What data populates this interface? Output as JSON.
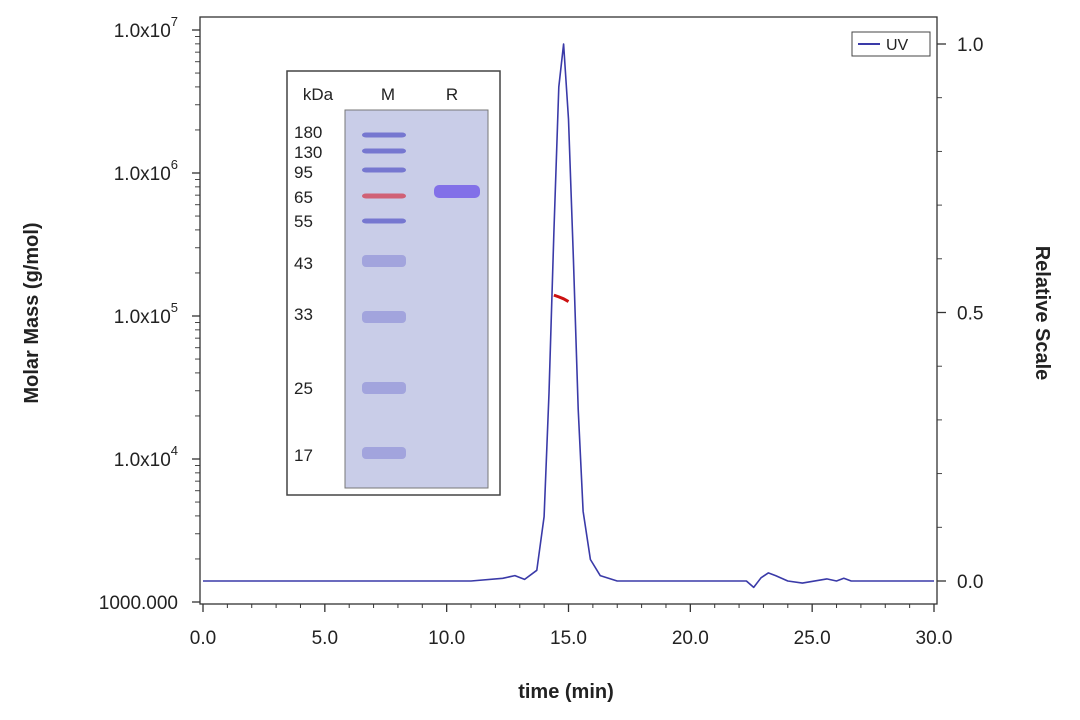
{
  "chart_data": {
    "type": "line",
    "xlabel": "time (min)",
    "ylabel_left": "Molar Mass (g/mol)",
    "ylabel_right": "Relative Scale",
    "xlim": [
      0,
      30
    ],
    "xticks": [
      0,
      5,
      10,
      15,
      20,
      25,
      30
    ],
    "xtick_labels": [
      "0.0",
      "5.0",
      "10.0",
      "15.0",
      "20.0",
      "25.0",
      "30.0"
    ],
    "y_left_scale": "log",
    "y_left_lim": [
      1000,
      10000000
    ],
    "y_left_ticks": [
      1000,
      10000,
      100000,
      1000000,
      10000000
    ],
    "y_left_tick_labels": [
      {
        "base": "1000.000",
        "exp": ""
      },
      {
        "base": "1.0x10",
        "exp": "4"
      },
      {
        "base": "1.0x10",
        "exp": "5"
      },
      {
        "base": "1.0x10",
        "exp": "6"
      },
      {
        "base": "1.0x10",
        "exp": "7"
      }
    ],
    "y_right_lim": [
      -0.04,
      1.04
    ],
    "y_right_ticks": [
      0.0,
      0.5,
      1.0
    ],
    "y_right_tick_labels": [
      "0.0",
      "0.5",
      "1.0"
    ],
    "legend": {
      "placement": "top-right",
      "entries": [
        "UV"
      ]
    },
    "series": [
      {
        "name": "UV",
        "axis": "right",
        "color": "#3a3aa8",
        "x": [
          0,
          11,
          12.3,
          12.8,
          13.2,
          13.7,
          14.0,
          14.2,
          14.4,
          14.6,
          14.8,
          15.0,
          15.2,
          15.4,
          15.6,
          15.9,
          16.3,
          17.0,
          22.3,
          22.6,
          22.9,
          23.2,
          23.5,
          24.0,
          24.6,
          25.6,
          26.0,
          26.3,
          26.6,
          27.0,
          30
        ],
        "y": [
          0.0,
          0.0,
          0.005,
          0.01,
          0.003,
          0.02,
          0.12,
          0.35,
          0.65,
          0.92,
          1.0,
          0.86,
          0.6,
          0.32,
          0.13,
          0.04,
          0.01,
          0.0,
          0.0,
          -0.012,
          0.006,
          0.015,
          0.01,
          0.0,
          -0.004,
          0.004,
          0.0,
          0.005,
          0.0,
          0.0,
          0.0
        ]
      },
      {
        "name": "Molar Mass",
        "axis": "left",
        "color": "#cc1111",
        "x": [
          14.4,
          14.6,
          14.8,
          15.0
        ],
        "y": [
          140000,
          136000,
          132000,
          126000
        ]
      }
    ],
    "inset": {
      "header": {
        "unit": "kDa",
        "lane_m": "M",
        "lane_r": "R"
      },
      "marker_labels": [
        "180",
        "130",
        "95",
        "65",
        "55",
        "43",
        "33",
        "25",
        "17"
      ],
      "band_color": "#5a5ac8",
      "highlight_band_color": "#d23c50",
      "gel_color": "#c9cde8"
    }
  }
}
